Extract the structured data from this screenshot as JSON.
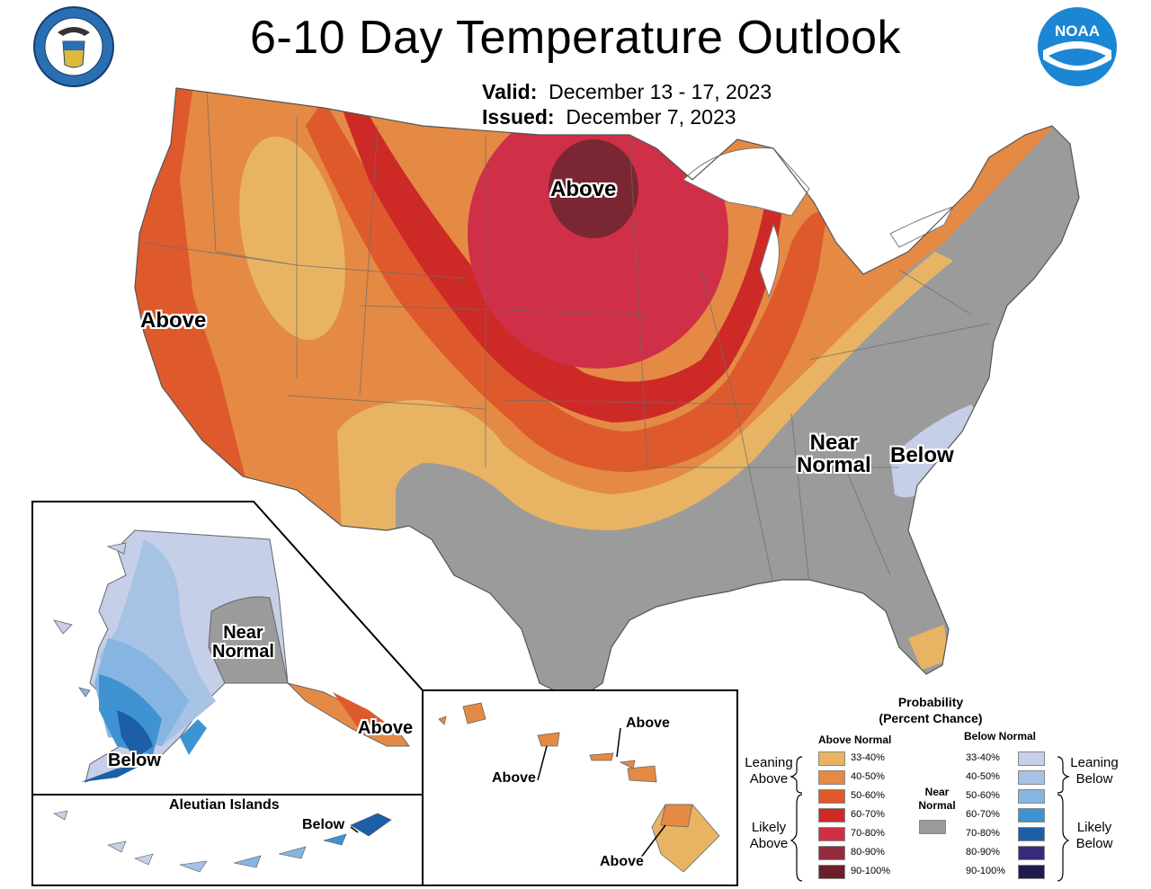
{
  "header": {
    "title": "6-10 Day Temperature Outlook",
    "valid_label": "Valid:",
    "valid_dates": "December 13 - 17, 2023",
    "issued_label": "Issued:",
    "issued_date": "December 7, 2023"
  },
  "logos": {
    "left": "department-of-commerce-seal",
    "right_text": "NOAA"
  },
  "map_labels": {
    "above_north": "Above",
    "above_west": "Above",
    "near_normal_east_line1": "Near",
    "near_normal_east_line2": "Normal",
    "below_east": "Below",
    "alaska_near_line1": "Near",
    "alaska_near_line2": "Normal",
    "alaska_below": "Below",
    "alaska_above": "Above",
    "aleutian_title": "Aleutian Islands",
    "aleutian_below": "Below",
    "hawaii_above_1": "Above",
    "hawaii_above_2": "Above",
    "hawaii_above_3": "Above"
  },
  "legend": {
    "title_line1": "Probability",
    "title_line2": "(Percent Chance)",
    "above_head": "Above Normal",
    "below_head": "Below Normal",
    "near_head_line1": "Near",
    "near_head_line2": "Normal",
    "leaning_above_line1": "Leaning",
    "leaning_above_line2": "Above",
    "likely_above_line1": "Likely",
    "likely_above_line2": "Above",
    "leaning_below_line1": "Leaning",
    "leaning_below_line2": "Below",
    "likely_below_line1": "Likely",
    "likely_below_line2": "Below",
    "above_rows": [
      {
        "label": "33-40%",
        "color": "#e8b464"
      },
      {
        "label": "40-50%",
        "color": "#e48a45"
      },
      {
        "label": "50-60%",
        "color": "#de5a2c"
      },
      {
        "label": "60-70%",
        "color": "#cd2a27"
      },
      {
        "label": "70-80%",
        "color": "#cf2f47"
      },
      {
        "label": "80-90%",
        "color": "#952b3c"
      },
      {
        "label": "90-100%",
        "color": "#6b1f2a"
      }
    ],
    "below_rows": [
      {
        "label": "33-40%",
        "color": "#c5cfe8"
      },
      {
        "label": "40-50%",
        "color": "#a6c2e4"
      },
      {
        "label": "50-60%",
        "color": "#86b5e2"
      },
      {
        "label": "60-70%",
        "color": "#3f93d3"
      },
      {
        "label": "70-80%",
        "color": "#1d5fa6"
      },
      {
        "label": "80-90%",
        "color": "#3a2a7e"
      },
      {
        "label": "90-100%",
        "color": "#1c1a4e"
      }
    ],
    "near_color": "#9b9b9b"
  }
}
